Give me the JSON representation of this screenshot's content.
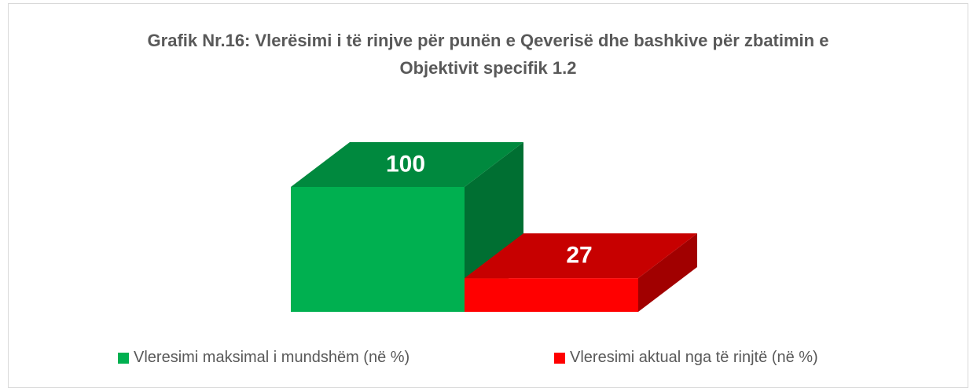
{
  "chart_data": {
    "type": "bar3d",
    "title": "Grafik Nr.16: Vlerësimi i të rinjve për punën e Qeverisë dhe bashkive për zbatimin e Objektivit specifik 1.2",
    "categories": [
      null
    ],
    "series": [
      {
        "name": "Vleresimi maksimal i mundshëm (në %)",
        "color": "#00b050",
        "values": [
          100
        ]
      },
      {
        "name": "Vleresimi aktual nga të rinjtë (në %)",
        "color": "#ff0000",
        "values": [
          27
        ]
      }
    ],
    "legend": "bottom"
  }
}
